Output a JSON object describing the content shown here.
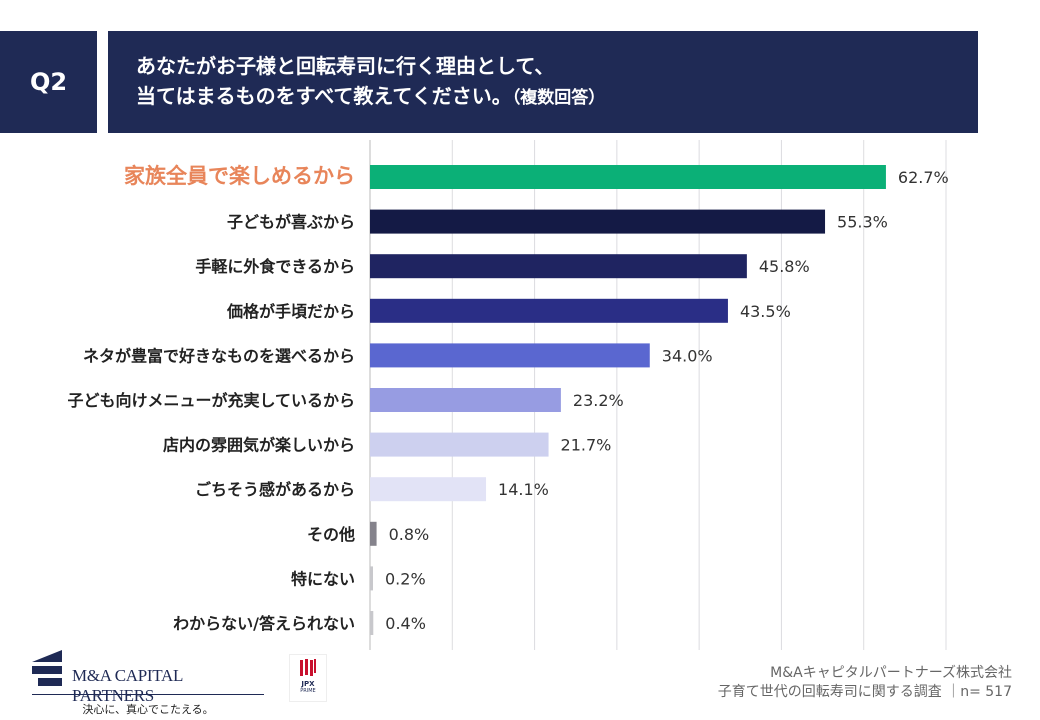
{
  "header": {
    "q_label": "Q2",
    "title_line1": "あなたがお子様と回転寿司に行く理由として、",
    "title_line2": "当てはまるものをすべて教えてください。",
    "title_note": "（複数回答）"
  },
  "chart_data": {
    "type": "bar",
    "orientation": "horizontal",
    "categories": [
      "家族全員で楽しめるから",
      "子どもが喜ぶから",
      "手軽に外食できるから",
      "価格が手頃だから",
      "ネタが豊富で好きなものを選べるから",
      "子ども向けメニューが充実しているから",
      "店内の雰囲気が楽しいから",
      "ごちそう感があるから",
      "その他",
      "特にない",
      "わからない/答えられない"
    ],
    "values": [
      62.7,
      55.3,
      45.8,
      43.5,
      34.0,
      23.2,
      21.7,
      14.1,
      0.8,
      0.2,
      0.4
    ],
    "labels": [
      "62.7%",
      "55.3%",
      "45.8%",
      "43.5%",
      "34.0%",
      "23.2%",
      "21.7%",
      "14.1%",
      "0.8%",
      "0.2%",
      "0.4%"
    ],
    "colors": [
      "#0bb077",
      "#141a45",
      "#1f2461",
      "#2a2e86",
      "#5a67d0",
      "#979ce2",
      "#cdd0ef",
      "#e2e3f6",
      "#85838c",
      "#c8c8cc",
      "#c8c8cc"
    ],
    "highlight_label_color": "#e8855a",
    "xlim": [
      0,
      70
    ],
    "grid": true,
    "unit": "%"
  },
  "footer": {
    "logo_name": "M&A CAPITAL PARTNERS",
    "logo_tagline": "決心に、真心でこたえる。",
    "jpx_label": "JPX",
    "jpx_sub": "PRIME",
    "company": "M&Aキャピタルパートナーズ株式会社",
    "survey": "子育て世代の回転寿司に関する調査 ｜n= 517"
  }
}
